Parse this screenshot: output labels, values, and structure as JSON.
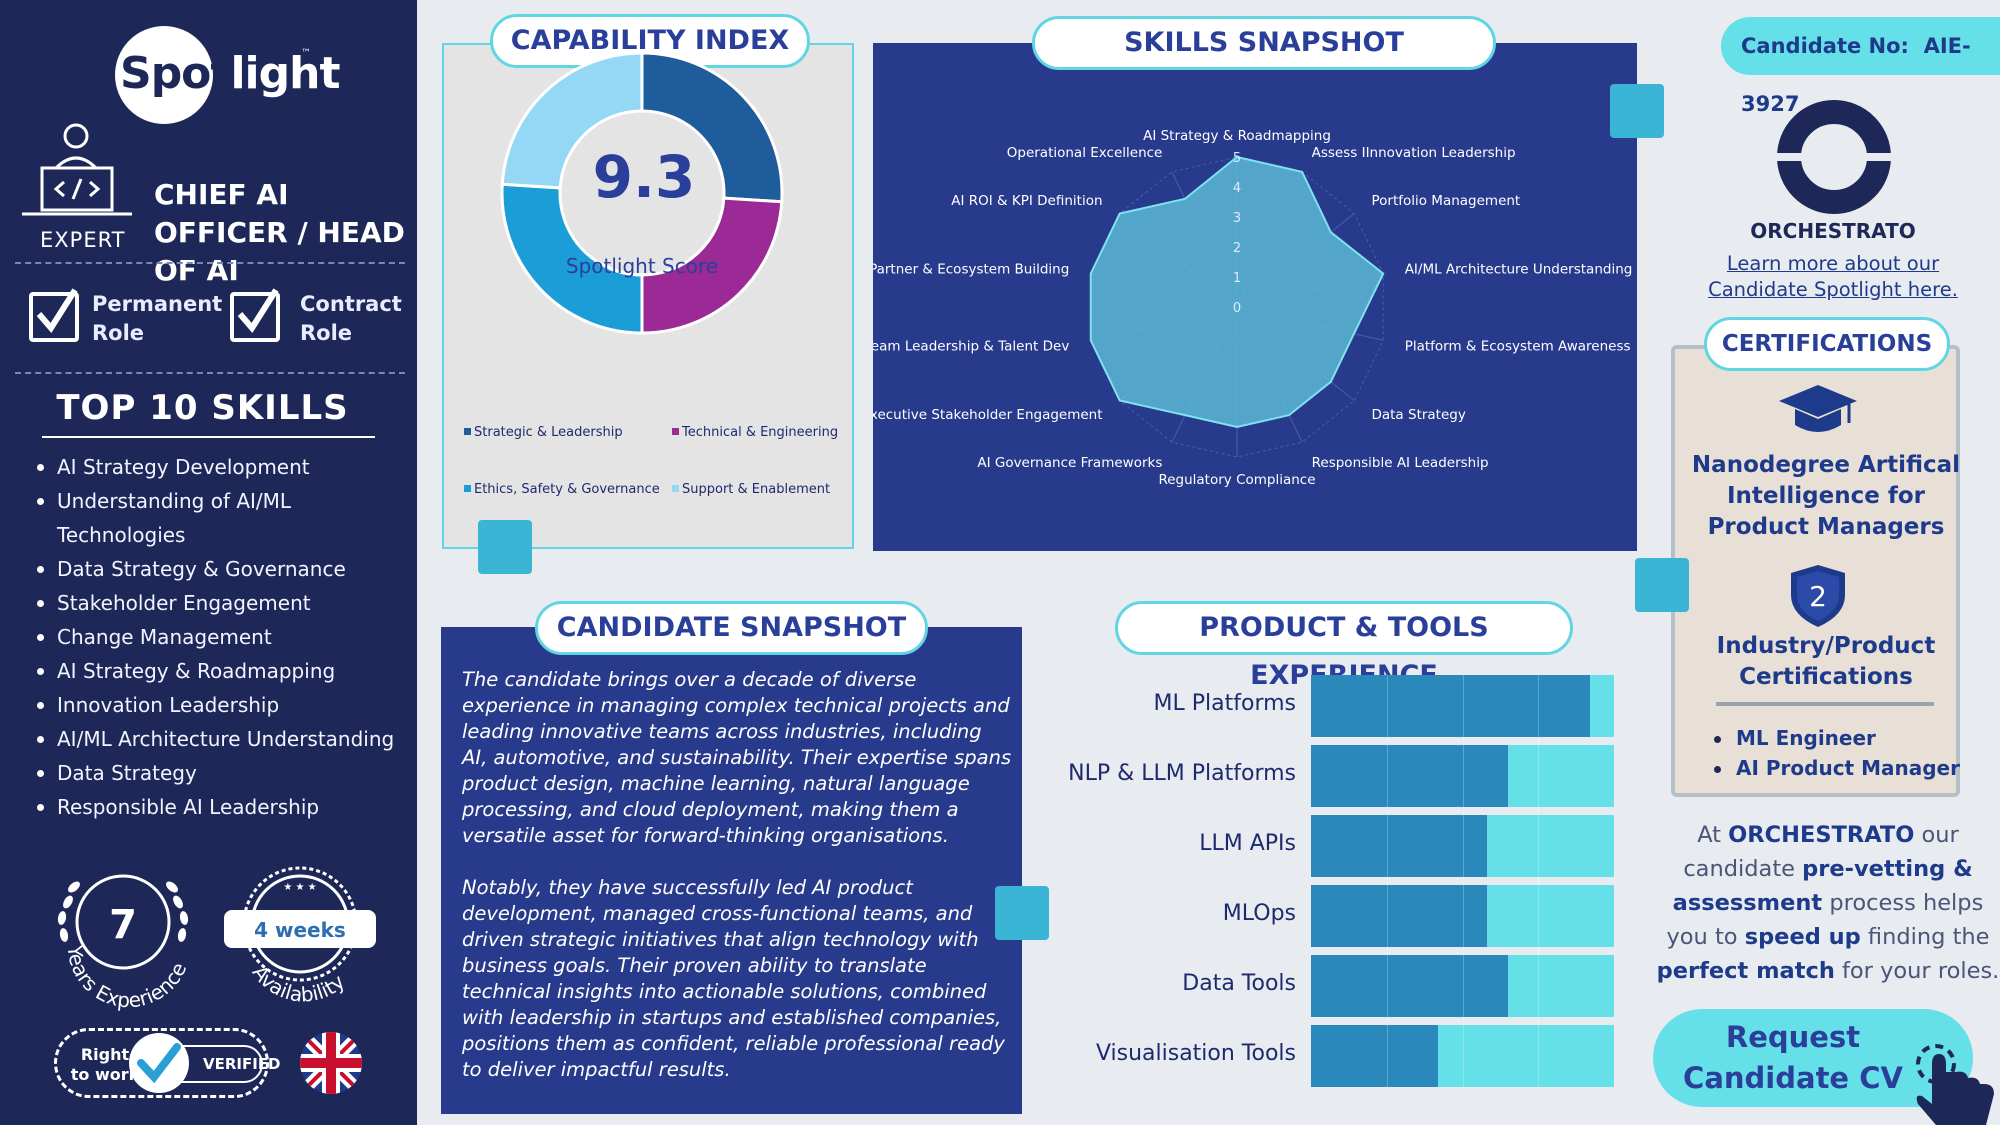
{
  "sidebar": {
    "logo": {
      "part1": "Spot",
      "part2": "light",
      "tm": "™"
    },
    "level": "EXPERT",
    "role_title": "CHIEF AI OFFICER / HEAD OF AI",
    "role_types": [
      {
        "label": "Permanent Role"
      },
      {
        "label": "Contract Role"
      }
    ],
    "top_skills_heading": "TOP 10 SKILLS",
    "top_skills": [
      "AI Strategy Development",
      "Understanding of AI/ML Technologies",
      "Data Strategy & Governance",
      "Stakeholder Engagement",
      "Change Management",
      "AI Strategy & Roadmapping",
      "Innovation Leadership",
      "AI/ML Architecture Understanding",
      "Data Strategy",
      "Responsible AI Leadership"
    ],
    "experience": {
      "value": "7",
      "label": "Years Experience"
    },
    "availability": {
      "value": "4 weeks",
      "label": "Availability"
    },
    "right_to_work": {
      "label": "Right to work",
      "badge": "VERIFIED"
    }
  },
  "capability": {
    "title": "CAPABILITY INDEX",
    "score": "9.3",
    "score_label": "Spotlight Score"
  },
  "skills_snapshot": {
    "title": "SKILLS SNAPSHOT"
  },
  "candidate_snapshot": {
    "title": "CANDIDATE SNAPSHOT",
    "p1": "The candidate brings over a decade of diverse experience in managing complex technical projects and leading innovative teams across industries, including AI, automotive, and sustainability. Their expertise spans product design, machine learning, natural language processing, and cloud deployment, making them a versatile asset for forward-thinking organisations.",
    "p2": "Notably, they have successfully led AI product development, managed cross-functional teams, and driven strategic initiatives that align technology with business goals. Their proven ability to translate technical insights into actionable solutions, combined with leadership in startups and established companies, positions them as confident, reliable professional ready to deliver impactful results."
  },
  "product_tools": {
    "title": "PRODUCT & TOOLS EXPERIENCE"
  },
  "right_panel": {
    "candidate_no_label": "Candidate No:",
    "candidate_no": "AIE-3927",
    "company": "ORCHESTRATO",
    "learn_more": "Learn more about our Candidate Spotlight here.",
    "certifications_title": "CERTIFICATIONS",
    "cert_main": "Nanodegree Artifical Intelligence for Product Managers",
    "cert_count": "2",
    "cert_count_label": "Industry/Product Certifications",
    "cert_items": [
      "ML Engineer",
      "AI Product Manager"
    ],
    "promo": {
      "t1": "At ",
      "b1": "ORCHESTRATO",
      "t2": " our candidate ",
      "b2": "pre-vetting & assessment",
      "t3": " process helps you to ",
      "b3": "speed up",
      "t4": " finding the ",
      "b4": "perfect match",
      "t5": " for your roles."
    },
    "request_cv": "Request Candidate CV"
  },
  "colors": {
    "navy": "#1e2858",
    "panel_blue": "#283a8c",
    "cyan": "#66e0e8",
    "accent": "#3bb5d6",
    "purple": "#9b2a96"
  },
  "chart_data": [
    {
      "type": "pie",
      "title": "CAPABILITY INDEX",
      "categories": [
        "Strategic & Leadership",
        "Technical & Engineering",
        "Ethics, Safety & Governance",
        "Support & Enablement"
      ],
      "values": [
        26,
        24,
        26,
        24
      ],
      "colors": [
        "#1f5c9c",
        "#9b2a96",
        "#1b9ed8",
        "#95d8f5"
      ],
      "legend": "bottom"
    },
    {
      "type": "radar",
      "title": "SKILLS SNAPSHOT",
      "categories": [
        "AI Strategy & Roadmapping",
        "Assess IInnovation Leadership",
        "Portfolio Management",
        "AI/ML Architecture Understanding",
        "Platform & Ecosystem Awareness",
        "Data Strategy",
        "Responsible AI Leadership",
        "Regulatory Compliance",
        "AI Governance Frameworks",
        "Executive Stakeholder Engagement",
        "Team Leadership & Talent Dev",
        "Partner & Ecosystem Building",
        "AI ROI & KPI Definition",
        "Operational Excellence"
      ],
      "values": [
        5,
        5,
        4,
        5,
        4,
        4,
        4,
        4,
        4,
        5,
        5,
        5,
        5,
        4
      ],
      "ticks": [
        "0",
        "1",
        "2",
        "3",
        "4",
        "5"
      ],
      "ylim": [
        0,
        5
      ]
    },
    {
      "type": "bar",
      "title": "PRODUCT & TOOLS EXPERIENCE",
      "orientation": "horizontal",
      "categories": [
        "ML Platforms",
        "NLP & LLM Platforms",
        "LLM APIs",
        "MLOps",
        "Data Tools",
        "Visualisation Tools"
      ],
      "values": [
        4.6,
        3.25,
        2.9,
        2.9,
        3.25,
        2.1
      ],
      "xlim": [
        0,
        5
      ]
    }
  ]
}
